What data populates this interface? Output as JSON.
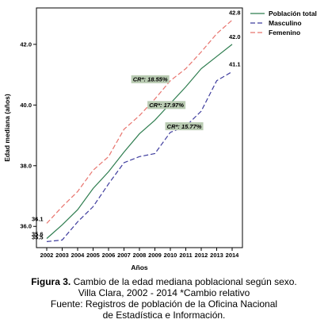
{
  "chart_data": {
    "type": "line",
    "xlabel": "Años",
    "ylabel": "Edad mediana (años)",
    "x": [
      2002,
      2003,
      2004,
      2005,
      2006,
      2007,
      2008,
      2009,
      2010,
      2011,
      2012,
      2013,
      2014
    ],
    "ylim": [
      35.3,
      43.2
    ],
    "yticks": [
      "36.0",
      "38.0",
      "40.0",
      "42.0"
    ],
    "grid": false,
    "legend_position": "top-right",
    "series": [
      {
        "name": "Población total",
        "color": "#2e7d4f",
        "dash": "solid",
        "values": [
          35.6,
          36.05,
          36.55,
          37.25,
          37.8,
          38.45,
          39.05,
          39.5,
          40.05,
          40.6,
          41.2,
          41.6,
          42.0
        ],
        "start_label": "35.6",
        "end_label": "42.0"
      },
      {
        "name": "Masculino",
        "color": "#3f3d9e",
        "dash": "dashed",
        "values": [
          35.5,
          35.55,
          36.15,
          36.65,
          37.4,
          38.1,
          38.3,
          38.4,
          39.1,
          39.3,
          39.8,
          40.8,
          41.1
        ],
        "start_label": "35.5",
        "end_label": "41.1"
      },
      {
        "name": "Femenino",
        "color": "#e8746e",
        "dash": "dashed",
        "values": [
          36.1,
          36.65,
          37.15,
          37.85,
          38.3,
          39.2,
          39.65,
          40.2,
          40.8,
          41.2,
          41.75,
          42.35,
          42.8
        ],
        "start_label": "36.1",
        "end_label": "42.8"
      }
    ],
    "annotations": [
      {
        "text": "CR*: 18.55%",
        "x": 2008.7,
        "y": 40.85
      },
      {
        "text": "CR*: 17.97%",
        "x": 2009.75,
        "y": 40.0
      },
      {
        "text": "CR*: 15.77%",
        "x": 2010.9,
        "y": 39.3
      }
    ],
    "annotation_bg": "#b9cbb2"
  },
  "caption": {
    "fig_label": "Figura 3.",
    "line1": " Cambio de la edad mediana poblacional según sexo.",
    "line2": "Villa Clara, 2002 - 2014 *Cambio relativo",
    "line3": "Fuente: Registros de población de la Oficina Nacional",
    "line4": "de Estadística e Información."
  }
}
